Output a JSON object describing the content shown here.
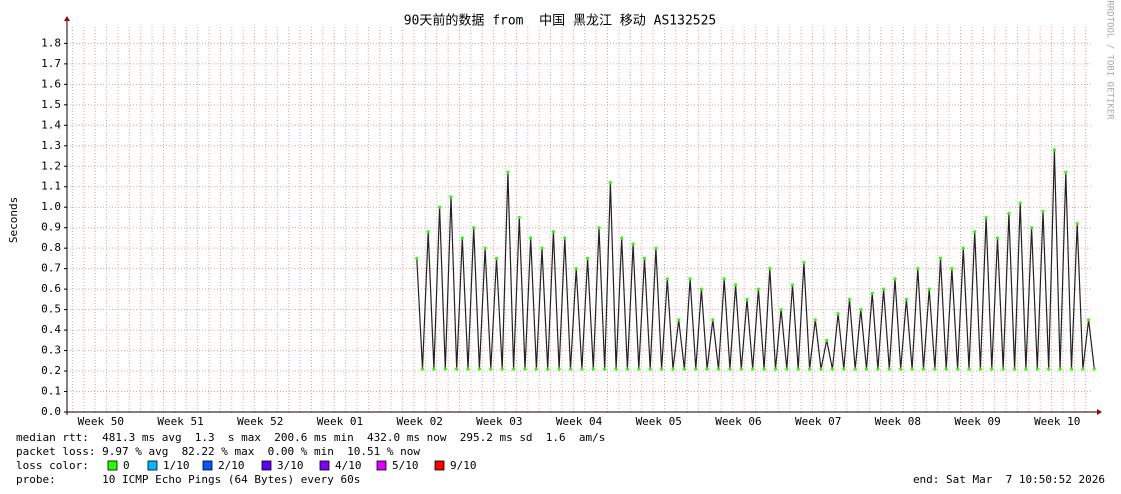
{
  "chart_data": {
    "type": "line",
    "title": "90天前的数据 from  中国 黑龙江 移动 AS132525",
    "y_label": "Seconds",
    "side_label": "RRDTOOL / TOBI OETIKER",
    "categories": [
      "Week 50",
      "Week 51",
      "Week 52",
      "Week 01",
      "Week 02",
      "Week 03",
      "Week 04",
      "Week 05",
      "Week 06",
      "Week 07",
      "Week 08",
      "Week 09",
      "Week 10"
    ],
    "ylim": [
      0,
      1.88
    ],
    "yticks": [
      {
        "value": 0,
        "label": "0.0"
      },
      {
        "value": 0.1,
        "label": "0.1"
      },
      {
        "value": 0.2,
        "label": "0.2"
      },
      {
        "value": 0.3,
        "label": "0.3"
      },
      {
        "value": 0.4,
        "label": "0.4"
      },
      {
        "value": 0.5,
        "label": "0.5"
      },
      {
        "value": 0.6,
        "label": "0.6"
      },
      {
        "value": 0.7,
        "label": "0.7"
      },
      {
        "value": 0.8,
        "label": "0.8"
      },
      {
        "value": 0.9,
        "label": "0.9"
      },
      {
        "value": 1,
        "label": "1.0"
      },
      {
        "value": 1.1,
        "label": "1.1"
      },
      {
        "value": 1.2,
        "label": "1.2"
      },
      {
        "value": 1.3,
        "label": "1.3"
      },
      {
        "value": 1.4,
        "label": "1.4"
      },
      {
        "value": 1.5,
        "label": "1.5"
      },
      {
        "value": 1.6,
        "label": "1.6"
      },
      {
        "value": 1.7,
        "label": "1.7"
      },
      {
        "value": 1.8,
        "label": "1.8"
      }
    ],
    "grid": true,
    "series": [
      {
        "color": "#222222",
        "values": [
          [
            null,
            null,
            null,
            null,
            null,
            null,
            null,
            null,
            null,
            null,
            null,
            null,
            null,
            null
          ],
          [
            null,
            null,
            null,
            null,
            null,
            null,
            null,
            null,
            null,
            null,
            null,
            null,
            null,
            null
          ],
          [
            null,
            null,
            null,
            null,
            null,
            null,
            null,
            null,
            null,
            null,
            null,
            null,
            null,
            null
          ],
          [
            null,
            null,
            null,
            null,
            null,
            null,
            null,
            null,
            null,
            null,
            null,
            null,
            null,
            null
          ],
          [
            null,
            null,
            null,
            null,
            null,
            null,
            0.75,
            0.21,
            0.88,
            0.21,
            1.0,
            0.21,
            1.05,
            0.21
          ],
          [
            0.85,
            0.21,
            0.9,
            0.21,
            0.8,
            0.21,
            0.75,
            0.21,
            1.17,
            0.21,
            0.95,
            0.21,
            0.85,
            0.21
          ],
          [
            0.8,
            0.21,
            0.88,
            0.21,
            0.85,
            0.21,
            0.7,
            0.21,
            0.75,
            0.21,
            0.9,
            0.21,
            1.12,
            0.21
          ],
          [
            0.85,
            0.21,
            0.82,
            0.21,
            0.75,
            0.21,
            0.8,
            0.21,
            0.65,
            0.21,
            0.45,
            0.21,
            0.65,
            0.21
          ],
          [
            0.6,
            0.21,
            0.45,
            0.21,
            0.65,
            0.21,
            0.62,
            0.21,
            0.55,
            0.21,
            0.6,
            0.21,
            0.7,
            0.21
          ],
          [
            0.5,
            0.21,
            0.62,
            0.21,
            0.73,
            0.21,
            0.45,
            0.21,
            0.35,
            0.21,
            0.48,
            0.21,
            0.55,
            0.21
          ],
          [
            0.5,
            0.21,
            0.58,
            0.21,
            0.6,
            0.21,
            0.65,
            0.21,
            0.55,
            0.21,
            0.7,
            0.21,
            0.6,
            0.21
          ],
          [
            0.75,
            0.21,
            0.7,
            0.21,
            0.8,
            0.21,
            0.88,
            0.21,
            0.95,
            0.21,
            0.85,
            0.21,
            0.97,
            0.21
          ],
          [
            1.02,
            0.21,
            0.9,
            0.21,
            0.98,
            0.21,
            1.28,
            0.21,
            1.17,
            0.21,
            0.92,
            0.21,
            0.45,
            0.21
          ]
        ]
      }
    ],
    "legend_title": "loss color:",
    "legend": [
      {
        "name": "0",
        "color": "#26ff00"
      },
      {
        "name": "1/10",
        "color": "#00b8ff"
      },
      {
        "name": "2/10",
        "color": "#0059ff"
      },
      {
        "name": "3/10",
        "color": "#5e00ff"
      },
      {
        "name": "4/10",
        "color": "#7e00ff"
      },
      {
        "name": "5/10",
        "color": "#dd00ff"
      },
      {
        "name": "9/10",
        "color": "#ff0000"
      }
    ],
    "median_rtt": "median rtt:  481.3 ms avg  1.3  s max  200.6 ms min  432.0 ms now  295.2 ms sd  1.6  am/s",
    "packet_loss": "packet loss: 9.97 % avg  82.22 % max  0.00 % min  10.51 % now",
    "probe": "probe:       10 ICMP Echo Pings (64 Bytes) every 60s",
    "end": "end: Sat Mar  7 10:50:52 2026"
  }
}
